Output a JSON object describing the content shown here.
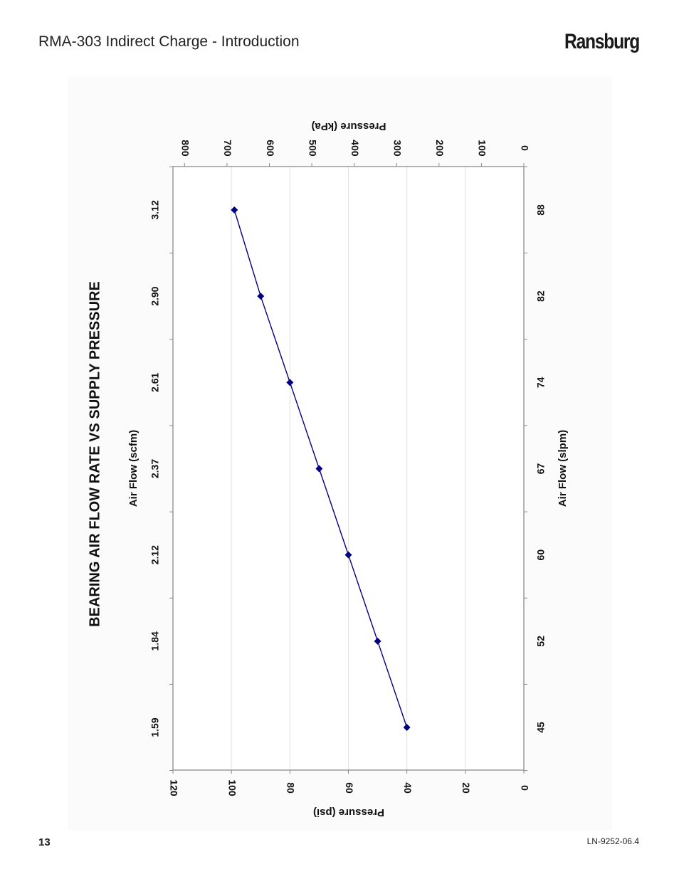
{
  "header": {
    "title": "RMA-303 Indirect Charge - Introduction",
    "brand": "Ransburg"
  },
  "footer": {
    "page_number": "13",
    "doc_code": "LN-9252-06.4"
  },
  "chart_data": {
    "type": "line",
    "title": "BEARING AIR FLOW RATE VS SUPPLY PRESSURE",
    "orientation": "rotated 90° counter-clockwise on the page",
    "x": {
      "primary_label": "Air Flow (slpm)",
      "primary_ticks": [
        "45",
        "52",
        "60",
        "67",
        "74",
        "82",
        "88"
      ],
      "secondary_label": "Air Flow (scfm)",
      "secondary_ticks": [
        "1.59",
        "1.84",
        "2.12",
        "2.37",
        "2.61",
        "2.90",
        "3.12"
      ]
    },
    "y": {
      "primary_label": "Pressure (psi)",
      "primary_ticks": [
        "0",
        "20",
        "40",
        "60",
        "80",
        "100",
        "120"
      ],
      "ylim": [
        0,
        120
      ],
      "secondary_label": "Pressure (kPa)",
      "secondary_ticks": [
        "0",
        "100",
        "200",
        "300",
        "400",
        "500",
        "600",
        "700",
        "800"
      ],
      "secondary_lim": [
        0,
        827.4
      ]
    },
    "grid": true,
    "series": [
      {
        "color": "#000080",
        "marker": "diamond",
        "x": [
          45,
          52,
          60,
          67,
          74,
          82,
          88
        ],
        "x_scfm": [
          1.59,
          1.84,
          2.12,
          2.37,
          2.61,
          2.9,
          3.12
        ],
        "y": [
          40,
          50,
          60,
          70,
          80,
          90,
          99
        ]
      }
    ]
  }
}
